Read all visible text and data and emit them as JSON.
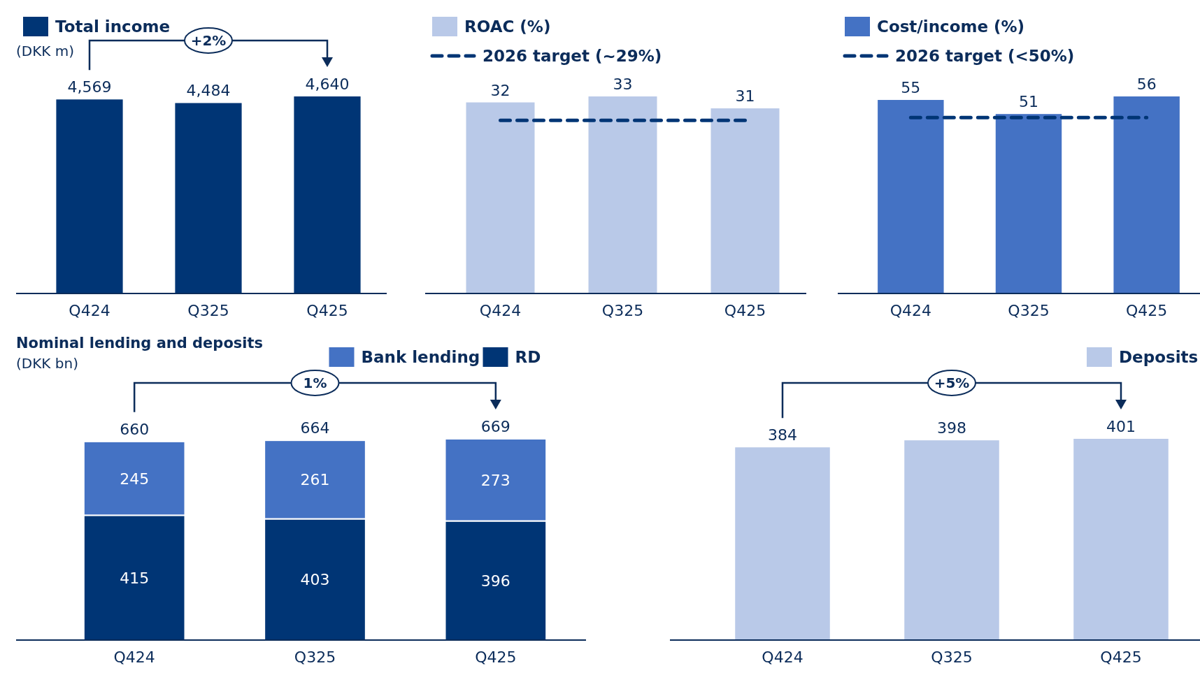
{
  "chart_data": [
    {
      "type": "bar",
      "ylabel": "(DKK m)",
      "categories": [
        "Q424",
        "Q325",
        "Q425"
      ],
      "series": [
        {
          "name": "Total income",
          "color": "#003575",
          "values": [
            4569,
            4484,
            4640
          ],
          "value_labels": [
            "4,569",
            "4,484",
            "4,640"
          ]
        }
      ],
      "legend": "top left",
      "annotations": [
        "+2%"
      ]
    },
    {
      "type": "bar",
      "categories": [
        "Q424",
        "Q325",
        "Q425"
      ],
      "series": [
        {
          "name": "ROAC (%)",
          "color": "#b9c9e8",
          "values": [
            32,
            33,
            31
          ]
        }
      ],
      "data_labels": true,
      "legend": "top left",
      "ref_lines": [
        {
          "axis": "y",
          "value": 29,
          "label": "2026 target (~29%)",
          "color": "#003575",
          "line_style": "dashed"
        }
      ]
    },
    {
      "type": "bar",
      "categories": [
        "Q424",
        "Q325",
        "Q425"
      ],
      "series": [
        {
          "name": "Cost/income (%)",
          "color": "#4472c4",
          "values": [
            55,
            51,
            56
          ]
        }
      ],
      "data_labels": true,
      "legend": "top left",
      "ref_lines": [
        {
          "axis": "y",
          "value": 50,
          "label": "2026 target (<50%)",
          "color": "#003575",
          "line_style": "dashed"
        }
      ]
    },
    {
      "type": "bar",
      "title": "Nominal lending and deposits",
      "ylabel": "(DKK bn)",
      "categories": [
        "Q424",
        "Q325",
        "Q425"
      ],
      "stacked": true,
      "series": [
        {
          "name": "RD",
          "color": "#003575",
          "values": [
            415,
            403,
            396
          ]
        },
        {
          "name": "Bank lending",
          "color": "#4472c4",
          "values": [
            245,
            261,
            273
          ]
        }
      ],
      "data_labels": true,
      "totals": [
        "660",
        "664",
        "669"
      ],
      "legend": "top",
      "annotations": [
        "1%"
      ]
    },
    {
      "type": "bar",
      "categories": [
        "Q424",
        "Q325",
        "Q425"
      ],
      "series": [
        {
          "name": "Deposits",
          "color": "#b9c9e8",
          "values": [
            384,
            398,
            401
          ]
        }
      ],
      "data_labels": true,
      "legend": "top right",
      "annotations": [
        "+5%"
      ]
    }
  ]
}
